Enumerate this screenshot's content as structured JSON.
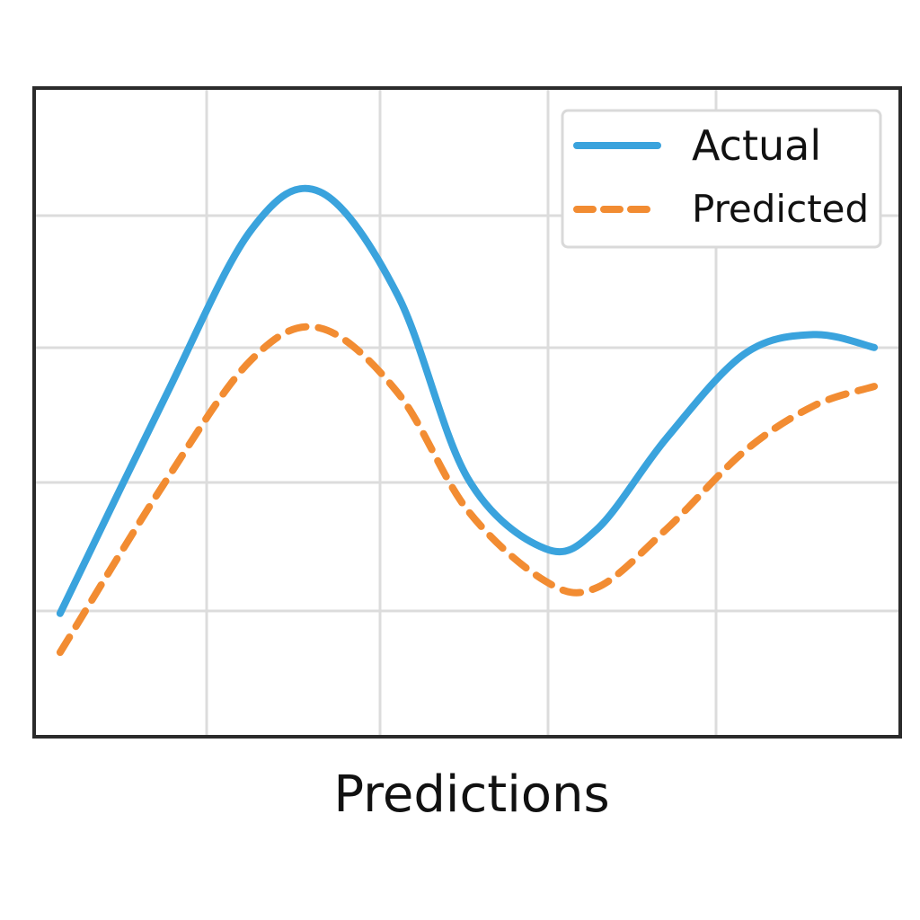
{
  "chart_data": {
    "type": "line",
    "title": "",
    "xlabel": "Predictions",
    "ylabel": "",
    "xlim": [
      0,
      10
    ],
    "ylim": [
      0,
      10
    ],
    "grid": true,
    "legend_position": "top-right",
    "x": [
      0.3,
      1.5,
      2.5,
      3.3,
      4.2,
      5.0,
      5.9,
      6.5,
      7.3,
      8.2,
      9.0,
      9.7
    ],
    "series": [
      {
        "name": "Actual",
        "style": "solid",
        "color": "#3aa3dd",
        "values": [
          1.9,
          5.2,
          7.8,
          8.4,
          6.8,
          4.0,
          2.9,
          3.2,
          4.6,
          5.9,
          6.2,
          6.0
        ]
      },
      {
        "name": "Predicted",
        "style": "dashed",
        "color": "#f28c32",
        "values": [
          1.3,
          3.9,
          5.8,
          6.3,
          5.3,
          3.5,
          2.4,
          2.3,
          3.2,
          4.4,
          5.1,
          5.4
        ]
      }
    ]
  }
}
